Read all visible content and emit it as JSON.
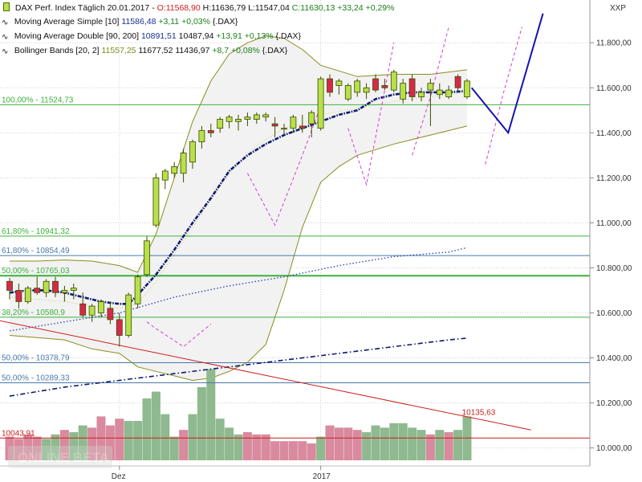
{
  "legend": {
    "instrument": "DAX Perf. Index Täglich",
    "date": "20.01.2017",
    "open": "O:11568,90",
    "high": "H:11636,79",
    "low": "L:11547,04",
    "close": "C:11630,13",
    "change": "+33,24",
    "change_pct": "+0,29%",
    "sma_name": "Moving Average Simple [10]",
    "sma_value": "11586,48",
    "sma_change": "+3,11",
    "sma_change_pct": "+0,03%",
    "sma_ref": "{.DAX}",
    "dma_name": "Moving Average Double [90, 200]",
    "dma_value1": "10891,51",
    "dma_value2": "10487,94",
    "dma_change": "+13,91",
    "dma_change_pct": "+0,13%",
    "dma_ref": "{.DAX}",
    "bb_name": "Bollinger Bands [20, 2]",
    "bb_mid": "11557,25",
    "bb_upper": "11677,52",
    "bb_lower": "11436,97",
    "bb_change": "+8,7",
    "bb_change_pct": "+0,08%",
    "bb_ref": "{.DAX}"
  },
  "watermark": "ONLINE BETA",
  "colors": {
    "bull": "#b8e04a",
    "bear": "#d8284a",
    "candle_outline": "#3c4a00",
    "sma": "#0a1a6e",
    "bollinger": "#8a8c1e",
    "fib_green": "#3db03d",
    "fib_blue": "#4a7aa8",
    "trend_red": "#cc1f1f",
    "projection": "#1414b4",
    "wave": "#d43cd4",
    "vol_up": "#8fb98f",
    "vol_down": "#d98a9e"
  },
  "chart_data": {
    "type": "candlestick",
    "y_axis": {
      "min": 9920,
      "max": 11990,
      "position": "right",
      "ticks": [
        10000,
        10200,
        10400,
        10600,
        10800,
        11000,
        11200,
        11400,
        11600,
        11800
      ],
      "tick_labels": [
        "10.000,00",
        "10.200,00",
        "10.400,00",
        "10.600,00",
        "10.800,00",
        "11.000,00",
        "11.200,00",
        "11.400,00",
        "11.600,00",
        "11.800,00"
      ],
      "unit_label": "XXP"
    },
    "x_axis": {
      "labels": [
        {
          "text": "Dez",
          "index": 12
        },
        {
          "text": "2017",
          "index": 34
        }
      ]
    },
    "candles": [
      [
        10740,
        10755,
        10660,
        10700
      ],
      [
        10700,
        10730,
        10620,
        10650
      ],
      [
        10650,
        10720,
        10640,
        10710
      ],
      [
        10710,
        10760,
        10680,
        10690
      ],
      [
        10690,
        10750,
        10670,
        10740
      ],
      [
        10740,
        10760,
        10670,
        10690
      ],
      [
        10690,
        10720,
        10650,
        10700
      ],
      [
        10700,
        10730,
        10660,
        10710
      ],
      [
        10640,
        10690,
        10580,
        10590
      ],
      [
        10590,
        10640,
        10560,
        10630
      ],
      [
        10600,
        10660,
        10580,
        10650
      ],
      [
        10620,
        10650,
        10550,
        10570
      ],
      [
        10570,
        10600,
        10450,
        10500
      ],
      [
        10500,
        10690,
        10490,
        10680
      ],
      [
        10640,
        10770,
        10620,
        10760
      ],
      [
        10770,
        10940,
        10760,
        10920
      ],
      [
        10990,
        11220,
        10980,
        11200
      ],
      [
        11190,
        11240,
        11150,
        11230
      ],
      [
        11220,
        11270,
        11200,
        11250
      ],
      [
        11220,
        11330,
        11180,
        11310
      ],
      [
        11270,
        11370,
        11240,
        11360
      ],
      [
        11360,
        11430,
        11330,
        11410
      ],
      [
        11410,
        11440,
        11380,
        11400
      ],
      [
        11420,
        11470,
        11400,
        11460
      ],
      [
        11450,
        11480,
        11420,
        11470
      ],
      [
        11450,
        11480,
        11410,
        11460
      ],
      [
        11460,
        11490,
        11430,
        11470
      ],
      [
        11460,
        11490,
        11440,
        11480
      ],
      [
        11470,
        11490,
        11450,
        11480
      ],
      [
        11440,
        11470,
        11380,
        11430
      ],
      [
        11420,
        11440,
        11390,
        11420
      ],
      [
        11420,
        11480,
        11400,
        11470
      ],
      [
        11430,
        11480,
        11400,
        11420
      ],
      [
        11440,
        11500,
        11380,
        11490
      ],
      [
        11420,
        11650,
        11410,
        11640
      ],
      [
        11640,
        11660,
        11560,
        11580
      ],
      [
        11610,
        11640,
        11570,
        11630
      ],
      [
        11550,
        11620,
        11540,
        11610
      ],
      [
        11580,
        11640,
        11560,
        11630
      ],
      [
        11580,
        11620,
        11550,
        11600
      ],
      [
        11640,
        11660,
        11580,
        11590
      ],
      [
        11610,
        11640,
        11590,
        11600
      ],
      [
        11590,
        11680,
        11580,
        11670
      ],
      [
        11550,
        11640,
        11530,
        11620
      ],
      [
        11640,
        11660,
        11540,
        11560
      ],
      [
        11560,
        11600,
        11540,
        11580
      ],
      [
        11590,
        11640,
        11430,
        11620
      ],
      [
        11570,
        11620,
        11550,
        11590
      ],
      [
        11560,
        11610,
        11550,
        11590
      ],
      [
        11650,
        11660,
        11580,
        11600
      ],
      [
        11560,
        11640,
        11550,
        11630
      ]
    ],
    "volume": {
      "ymax": 10290,
      "ybase": 9945,
      "bars": [
        [
          10050,
          "down"
        ],
        [
          10040,
          "down"
        ],
        [
          10060,
          "down"
        ],
        [
          10050,
          "down"
        ],
        [
          10040,
          "up"
        ],
        [
          10060,
          "up"
        ],
        [
          10080,
          "down"
        ],
        [
          10070,
          "up"
        ],
        [
          10100,
          "up"
        ],
        [
          10090,
          "down"
        ],
        [
          10140,
          "down"
        ],
        [
          10100,
          "down"
        ],
        [
          10130,
          "down"
        ],
        [
          10120,
          "up"
        ],
        [
          10120,
          "up"
        ],
        [
          10220,
          "up"
        ],
        [
          10250,
          "up"
        ],
        [
          10150,
          "up"
        ],
        [
          10050,
          "up"
        ],
        [
          10080,
          "down"
        ],
        [
          10150,
          "up"
        ],
        [
          10270,
          "up"
        ],
        [
          10350,
          "up"
        ],
        [
          10130,
          "up"
        ],
        [
          10090,
          "up"
        ],
        [
          10060,
          "up"
        ],
        [
          10070,
          "down"
        ],
        [
          10060,
          "down"
        ],
        [
          10060,
          "down"
        ],
        [
          10030,
          "down"
        ],
        [
          10030,
          "down"
        ],
        [
          10030,
          "down"
        ],
        [
          10030,
          "down"
        ],
        [
          10020,
          "down"
        ],
        [
          10050,
          "up"
        ],
        [
          10100,
          "down"
        ],
        [
          10090,
          "down"
        ],
        [
          10090,
          "down"
        ],
        [
          10080,
          "down"
        ],
        [
          10070,
          "up"
        ],
        [
          10100,
          "up"
        ],
        [
          10090,
          "up"
        ],
        [
          10110,
          "up"
        ],
        [
          10110,
          "up"
        ],
        [
          10090,
          "up"
        ],
        [
          10080,
          "up"
        ],
        [
          10060,
          "down"
        ],
        [
          10080,
          "up"
        ],
        [
          10070,
          "down"
        ],
        [
          10080,
          "up"
        ],
        [
          10140,
          "up"
        ]
      ]
    },
    "bollinger": {
      "upper": [
        [
          0,
          10830
        ],
        [
          3,
          10830
        ],
        [
          6,
          10835
        ],
        [
          9,
          10830
        ],
        [
          12,
          10810
        ],
        [
          14,
          10780
        ],
        [
          16,
          10950
        ],
        [
          18,
          11200
        ],
        [
          20,
          11450
        ],
        [
          22,
          11630
        ],
        [
          24,
          11750
        ],
        [
          26,
          11800
        ],
        [
          28,
          11830
        ],
        [
          30,
          11820
        ],
        [
          32,
          11770
        ],
        [
          34,
          11700
        ],
        [
          38,
          11650
        ],
        [
          42,
          11660
        ],
        [
          46,
          11660
        ],
        [
          50,
          11680
        ]
      ],
      "middle": [
        [
          0,
          10670
        ],
        [
          3,
          10660
        ],
        [
          6,
          10650
        ],
        [
          9,
          10630
        ],
        [
          12,
          10620
        ],
        [
          14,
          10640
        ],
        [
          16,
          10740
        ],
        [
          18,
          10860
        ],
        [
          20,
          10980
        ],
        [
          22,
          11100
        ],
        [
          24,
          11220
        ],
        [
          26,
          11310
        ],
        [
          28,
          11370
        ],
        [
          30,
          11420
        ],
        [
          32,
          11440
        ],
        [
          34,
          11480
        ],
        [
          38,
          11510
        ],
        [
          42,
          11540
        ],
        [
          46,
          11560
        ],
        [
          50,
          11580
        ]
      ],
      "lower": [
        [
          0,
          10500
        ],
        [
          3,
          10490
        ],
        [
          6,
          10480
        ],
        [
          9,
          10440
        ],
        [
          12,
          10420
        ],
        [
          14,
          10360
        ],
        [
          16,
          10340
        ],
        [
          18,
          10320
        ],
        [
          20,
          10300
        ],
        [
          22,
          10310
        ],
        [
          24,
          10340
        ],
        [
          26,
          10380
        ],
        [
          28,
          10460
        ],
        [
          30,
          10700
        ],
        [
          32,
          10980
        ],
        [
          34,
          11180
        ],
        [
          36,
          11250
        ],
        [
          38,
          11300
        ],
        [
          42,
          11350
        ],
        [
          46,
          11390
        ],
        [
          50,
          11430
        ]
      ]
    },
    "sma10": [
      [
        0,
        10690
      ],
      [
        2,
        10700
      ],
      [
        4,
        10700
      ],
      [
        6,
        10690
      ],
      [
        8,
        10670
      ],
      [
        10,
        10650
      ],
      [
        12,
        10640
      ],
      [
        13,
        10640
      ],
      [
        14,
        10680
      ],
      [
        16,
        10770
      ],
      [
        18,
        10880
      ],
      [
        20,
        11000
      ],
      [
        22,
        11110
      ],
      [
        24,
        11230
      ],
      [
        26,
        11300
      ],
      [
        28,
        11350
      ],
      [
        30,
        11390
      ],
      [
        32,
        11420
      ],
      [
        34,
        11450
      ],
      [
        36,
        11480
      ],
      [
        38,
        11500
      ],
      [
        40,
        11550
      ],
      [
        42,
        11570
      ],
      [
        44,
        11580
      ],
      [
        46,
        11580
      ],
      [
        48,
        11580
      ],
      [
        50,
        11586
      ]
    ],
    "ma90": [
      [
        0,
        10520
      ],
      [
        6,
        10560
      ],
      [
        12,
        10600
      ],
      [
        18,
        10670
      ],
      [
        24,
        10720
      ],
      [
        30,
        10760
      ],
      [
        36,
        10810
      ],
      [
        42,
        10850
      ],
      [
        48,
        10870
      ],
      [
        50,
        10890
      ]
    ],
    "ma200": [
      [
        0,
        10230
      ],
      [
        6,
        10270
      ],
      [
        12,
        10300
      ],
      [
        18,
        10330
      ],
      [
        24,
        10360
      ],
      [
        30,
        10390
      ],
      [
        36,
        10420
      ],
      [
        42,
        10450
      ],
      [
        48,
        10480
      ],
      [
        50,
        10488
      ]
    ],
    "fib_levels": [
      {
        "label": "100,00% - 11524,73",
        "value": 11524.73,
        "color": "green"
      },
      {
        "label": "61,80% - 10941,32",
        "value": 10941.32,
        "color": "green"
      },
      {
        "label": "61,80% - 10854,49",
        "value": 10854.49,
        "color": "blue"
      },
      {
        "label": "50,00% - 10765,03",
        "value": 10765.03,
        "color": "green"
      },
      {
        "label": "38,20% - 10580,9",
        "value": 10580.9,
        "color": "green"
      },
      {
        "label": "50,00% - 10378,79",
        "value": 10378.79,
        "color": "blue"
      },
      {
        "label": "50,00% - 10289,33",
        "value": 10289.33,
        "color": "blue"
      },
      {
        "label": "10043,91",
        "value": 10043.91,
        "color": "red"
      }
    ],
    "trendline": {
      "points": [
        [
          -10,
          10640
        ],
        [
          57,
          10080
        ]
      ],
      "label": "10135,63",
      "label_index": 49,
      "label_value": 10135.63
    },
    "projection": [
      [
        50.5,
        11600
      ],
      [
        54.5,
        11400
      ],
      [
        58.3,
        11930
      ]
    ],
    "waves": [
      [
        [
          15,
          10560
        ],
        [
          16,
          10530
        ],
        [
          19,
          10450
        ],
        [
          22,
          10550
        ]
      ],
      [
        [
          26,
          11220
        ],
        [
          29,
          10990
        ],
        [
          32,
          11300
        ],
        [
          34,
          11520
        ]
      ],
      [
        [
          37,
          11420
        ],
        [
          39,
          11170
        ],
        [
          42,
          11800
        ]
      ],
      [
        [
          44,
          11300
        ],
        [
          46,
          11560
        ],
        [
          48,
          11870
        ]
      ],
      [
        [
          52,
          11260
        ],
        [
          54,
          11580
        ],
        [
          56,
          11870
        ]
      ]
    ]
  }
}
